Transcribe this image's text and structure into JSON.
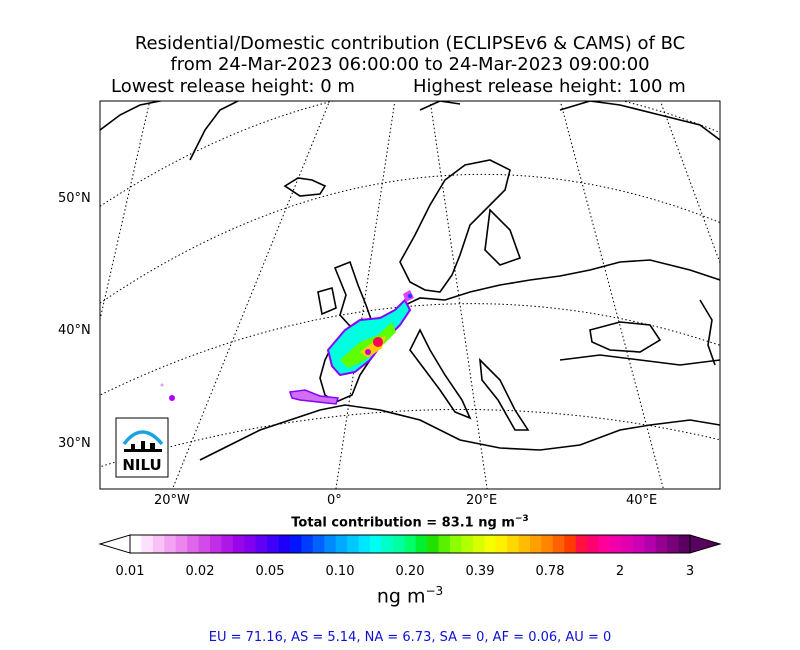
{
  "title": {
    "line1": "Residential/Domestic contribution (ECLIPSEv6 & CAMS) of BC",
    "line2": "from 24-Mar-2023 06:00:00 to 24-Mar-2023 09:00:00",
    "line3a": "Lowest release height: 0 m",
    "line3b": "Highest release height: 100 m"
  },
  "map": {
    "lat_labels": [
      "50°N",
      "40°N",
      "30°N"
    ],
    "lon_labels": [
      "20°W",
      "0°",
      "20°E",
      "40°E"
    ],
    "logo_text": "NILU",
    "colors": {
      "ocean": "#ffffff",
      "coast": "#000000",
      "grid": "#000000",
      "logo_blue": "#1aa3e0"
    }
  },
  "total_contribution": {
    "label": "Total contribution = 83.1 ng m",
    "exp": "−3"
  },
  "colorbar": {
    "tick_labels": [
      "0.01",
      "0.02",
      "0.05",
      "0.10",
      "0.20",
      "0.39",
      "0.78",
      "2",
      "3"
    ],
    "unit": "ng m",
    "unit_exp": "−3",
    "colors": [
      "#ffffff",
      "#fde0fd",
      "#f8c2f8",
      "#f2a4f2",
      "#ea86ee",
      "#e066ea",
      "#d44ae8",
      "#c22ee6",
      "#ae18e6",
      "#9a06ea",
      "#8200f0",
      "#6000f4",
      "#3e00f8",
      "#1c00fc",
      "#0016ff",
      "#003cff",
      "#0062ff",
      "#0088ff",
      "#00aaff",
      "#00c8ff",
      "#00e6ff",
      "#00fff0",
      "#00ffc8",
      "#00ffa0",
      "#00ff6a",
      "#00f030",
      "#22e000",
      "#5af000",
      "#8cff00",
      "#b4ff00",
      "#d8ff00",
      "#f4ff00",
      "#fff000",
      "#ffd800",
      "#ffbc00",
      "#ffa000",
      "#ff8400",
      "#ff6000",
      "#ff3c00",
      "#ff1040",
      "#ff0070",
      "#ff009a",
      "#f000aa",
      "#e000b2",
      "#cc00b4",
      "#b400a8",
      "#960090",
      "#780078",
      "#5a0060"
    ]
  },
  "regions": "EU = 71.16,  AS = 5.14,  NA = 6.73,  SA = 0,  AF = 0.06,  AU = 0"
}
